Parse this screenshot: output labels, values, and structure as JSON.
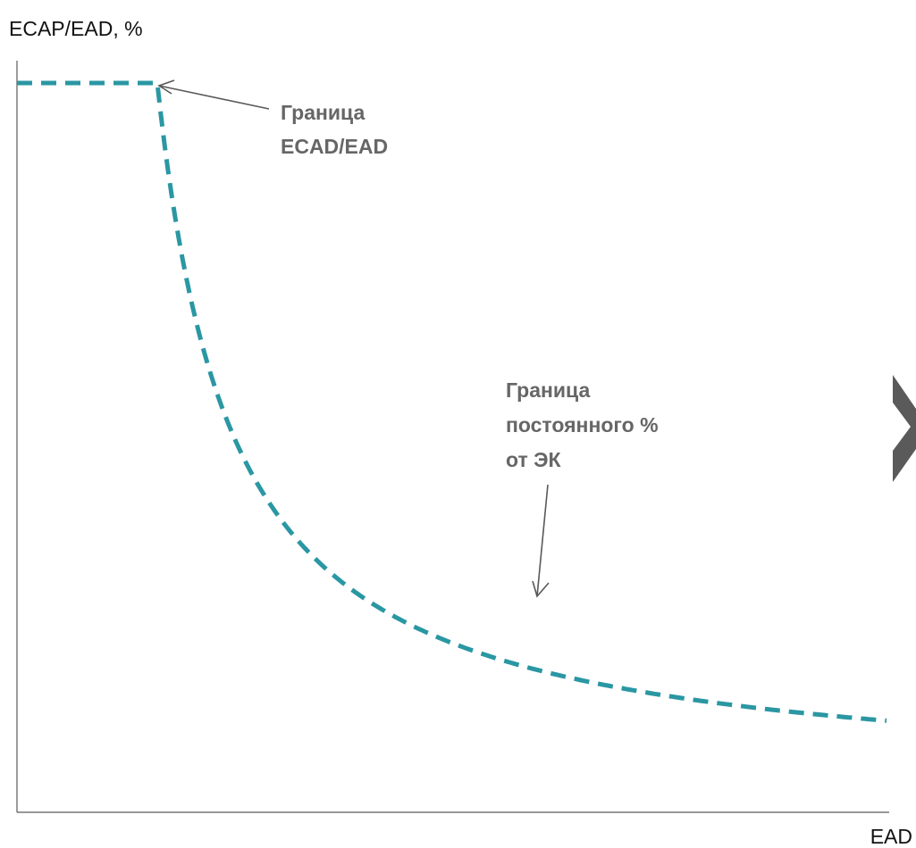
{
  "chart_data": {
    "type": "line",
    "title": "",
    "ylabel": "ECAP/EAD, %",
    "xlabel": "EAD",
    "grid": false,
    "legend": "none",
    "series": [
      {
        "line_style": "dashed",
        "color": "#2A97A3"
      }
    ],
    "annotations": [
      {
        "lines": [
          "Граница",
          "ECAD/EAD"
        ]
      },
      {
        "lines": [
          "Граница",
          "постоянного %",
          "от ЭК"
        ]
      }
    ]
  },
  "colors": {
    "curve": "#2A97A3",
    "axis": "#595959",
    "annotation_text": "#666666",
    "arrow": "#595959",
    "chevron": "#5A5A5A"
  },
  "icons": {
    "chevron": "chevron-right-icon"
  }
}
